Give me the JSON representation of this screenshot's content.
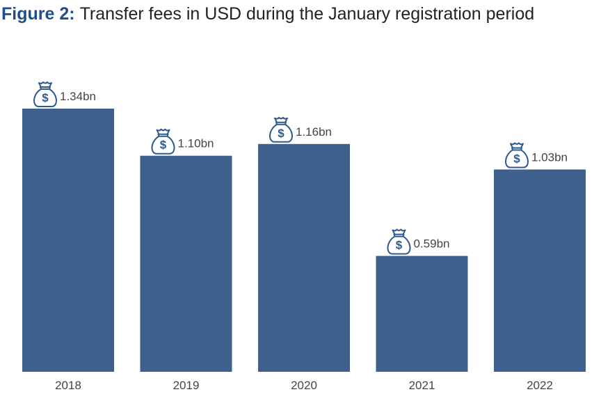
{
  "figure": {
    "prefix": "Figure 2:",
    "title": "Transfer fees in USD during the January registration period"
  },
  "colors": {
    "title_prefix": "#1f4e8c",
    "bar": "#3f5f8c",
    "text": "#444444",
    "icon": "#2c5a8f"
  },
  "icon": "money-bag-icon",
  "chart_data": {
    "type": "bar",
    "title": "Transfer fees in USD during the January registration period",
    "categories": [
      "2018",
      "2019",
      "2020",
      "2021",
      "2022"
    ],
    "values": [
      1.34,
      1.1,
      1.16,
      0.59,
      1.03
    ],
    "labels": [
      "1.34bn",
      "1.10bn",
      "1.16bn",
      "0.59bn",
      "1.03bn"
    ],
    "unit": "bn USD",
    "xlabel": "",
    "ylabel": "",
    "ylim": [
      0,
      1.34
    ],
    "grid": false,
    "legend": "none"
  }
}
